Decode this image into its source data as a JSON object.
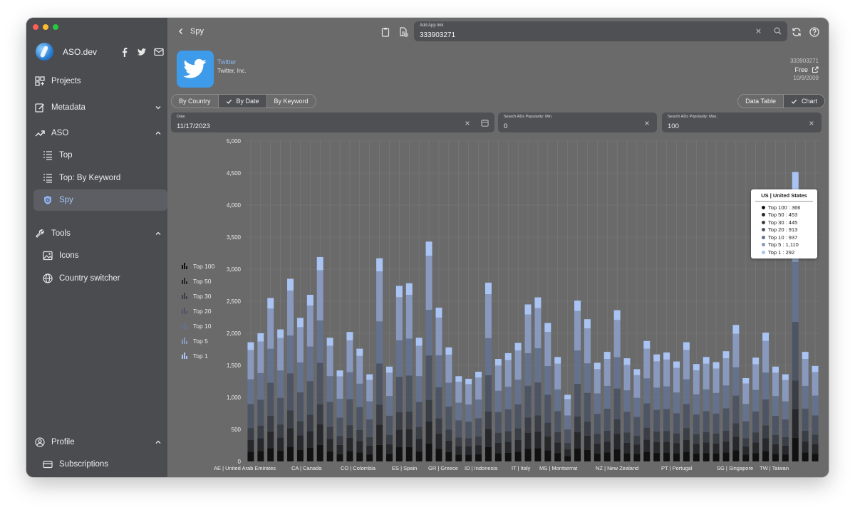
{
  "sidebar": {
    "brand": "ASO.dev",
    "items": [
      {
        "label": "Projects",
        "icon": "grid-icon"
      },
      {
        "label": "Metadata",
        "icon": "edit-icon"
      },
      {
        "label": "ASO",
        "icon": "trend-icon"
      },
      {
        "label": "Top",
        "icon": "list-icon"
      },
      {
        "label": "Top: By Keyword",
        "icon": "list-icon"
      },
      {
        "label": "Spy",
        "icon": "shield-icon"
      },
      {
        "label": "Tools",
        "icon": "wrench-icon"
      },
      {
        "label": "Icons",
        "icon": "image-icon"
      },
      {
        "label": "Country switcher",
        "icon": "globe-icon"
      },
      {
        "label": "Profile",
        "icon": "user-icon"
      },
      {
        "label": "Subscriptions",
        "icon": "card-icon"
      }
    ]
  },
  "topbar": {
    "back_label": "Spy",
    "search_label": "Add App link",
    "search_value": "333903271"
  },
  "app": {
    "name": "Twitter",
    "developer": "Twitter, Inc.",
    "id": "333903271",
    "price": "Free",
    "date": "10/9/2009"
  },
  "tabs": [
    "By Country",
    "By Date",
    "By Keyword"
  ],
  "tabs_selected": "By Date",
  "view_toggle": [
    "Data Table",
    "Chart"
  ],
  "view_selected": "Chart",
  "filters": {
    "date_label": "Date",
    "date_value": "11/17/2023",
    "min_label": "Search ADs Popularity: Min.",
    "min_value": "0",
    "max_label": "Search ADs Popularity: Max.",
    "max_value": "100"
  },
  "colors": {
    "top100": "#111111",
    "top50": "#26282c",
    "top30": "#3a3e46",
    "top20": "#4d5565",
    "top10": "#65728d",
    "top5": "#8899bd",
    "top1": "#a9c3f3"
  },
  "chart_data": {
    "type": "bar",
    "stacked": true,
    "ylim": [
      0,
      5000
    ],
    "y_ticks": [
      "0",
      "500",
      "1,000",
      "1,500",
      "2,000",
      "2,500",
      "3,000",
      "3,500",
      "4,000",
      "4,500",
      "5,000"
    ],
    "legend": [
      "Top 100",
      "Top 50",
      "Top 30",
      "Top 20",
      "Top 10",
      "Top 5",
      "Top 1"
    ],
    "visible_x_labels": [
      "AE | United Arab Emirates",
      "CA | Canada",
      "CO | Colombia",
      "ES | Spain",
      "GR | Greece",
      "ID | Indonesia",
      "IT | Italy",
      "MS | Montserrat",
      "NZ | New Zealand",
      "PT | Portugal",
      "SG | Singapore",
      "TW | Taiwan"
    ],
    "totals": [
      1860,
      2000,
      2550,
      2060,
      2850,
      2240,
      2600,
      3190,
      1930,
      1420,
      2020,
      1760,
      1360,
      3170,
      1480,
      2740,
      2780,
      1930,
      3430,
      2400,
      1780,
      1330,
      1290,
      1400,
      2790,
      1600,
      1690,
      1850,
      2450,
      2560,
      2160,
      1630,
      1040,
      2510,
      2220,
      1540,
      1710,
      2360,
      1610,
      1440,
      1880,
      1670,
      1700,
      1560,
      1860,
      1520,
      1630,
      1550,
      1720,
      2130,
      1300,
      1620,
      2010,
      1480,
      1360,
      4516,
      1710,
      1490
    ],
    "highlight": {
      "title": "US | United States",
      "series": [
        {
          "name": "Top 100",
          "value": 366,
          "label": "Top 100 : 366"
        },
        {
          "name": "Top 50",
          "value": 453,
          "label": "Top 50 : 453"
        },
        {
          "name": "Top 30",
          "value": 445,
          "label": "Top 30 : 445"
        },
        {
          "name": "Top 20",
          "value": 913,
          "label": "Top 20 : 913"
        },
        {
          "name": "Top 10",
          "value": 937,
          "label": "Top 10 : 937"
        },
        {
          "name": "Top 5",
          "value": 1110,
          "label": "Top 5 : 1,110"
        },
        {
          "name": "Top 1",
          "value": 292,
          "label": "Top 1 : 292"
        }
      ]
    }
  }
}
